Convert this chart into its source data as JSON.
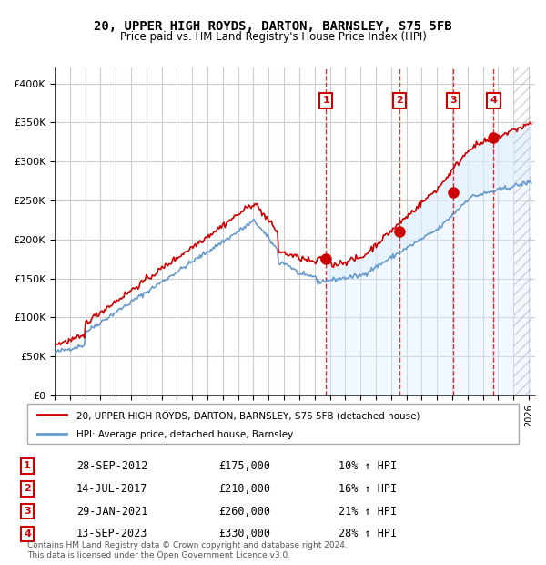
{
  "title": "20, UPPER HIGH ROYDS, DARTON, BARNSLEY, S75 5FB",
  "subtitle": "Price paid vs. HM Land Registry's House Price Index (HPI)",
  "ylabel": "",
  "ylim": [
    0,
    420000
  ],
  "yticks": [
    0,
    50000,
    100000,
    150000,
    200000,
    250000,
    300000,
    350000,
    400000
  ],
  "ytick_labels": [
    "£0",
    "£50K",
    "£100K",
    "£150K",
    "£200K",
    "£250K",
    "£300K",
    "£350K",
    "£400K"
  ],
  "red_line_color": "#cc0000",
  "blue_line_color": "#6699cc",
  "blue_fill_color": "#ddeeff",
  "grid_color": "#cccccc",
  "bg_color": "#ffffff",
  "sale_dates": [
    "2012-09-28",
    "2017-07-14",
    "2021-01-29",
    "2023-09-13"
  ],
  "sale_prices": [
    175000,
    210000,
    260000,
    330000
  ],
  "sale_labels": [
    "1",
    "2",
    "3",
    "4"
  ],
  "x_start_year": 1995,
  "x_end_year": 2026,
  "legend_red_label": "20, UPPER HIGH ROYDS, DARTON, BARNSLEY, S75 5FB (detached house)",
  "legend_blue_label": "HPI: Average price, detached house, Barnsley",
  "table_rows": [
    [
      "1",
      "28-SEP-2012",
      "£175,000",
      "10% ↑ HPI"
    ],
    [
      "2",
      "14-JUL-2017",
      "£210,000",
      "16% ↑ HPI"
    ],
    [
      "3",
      "29-JAN-2021",
      "£260,000",
      "21% ↑ HPI"
    ],
    [
      "4",
      "13-SEP-2023",
      "£330,000",
      "28% ↑ HPI"
    ]
  ],
  "footnote": "Contains HM Land Registry data © Crown copyright and database right 2024.\nThis data is licensed under the Open Government Licence v3.0.",
  "hatch_color": "#aaaaaa",
  "shade_start": "2012-09-28",
  "shade_end": "2023-09-13"
}
